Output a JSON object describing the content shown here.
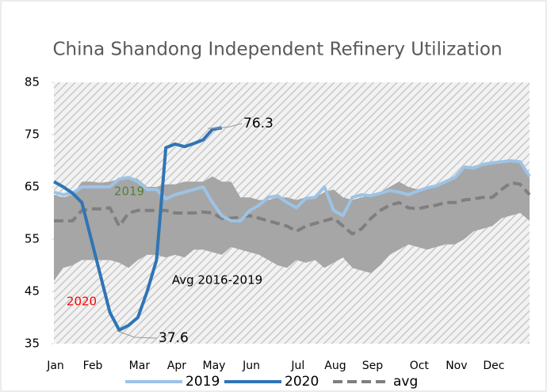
{
  "chart_data": {
    "type": "line",
    "title": "China Shandong Independent Refinery Utilization",
    "categories": [
      "Jan",
      null,
      null,
      null,
      "Feb",
      null,
      null,
      null,
      null,
      "Mar",
      null,
      null,
      null,
      "Apr",
      null,
      null,
      null,
      "May",
      null,
      null,
      null,
      "Jun",
      null,
      null,
      null,
      null,
      "Jul",
      null,
      null,
      null,
      "Aug",
      null,
      null,
      null,
      "Sep",
      null,
      null,
      null,
      null,
      "Oct",
      null,
      null,
      null,
      "Nov",
      null,
      null,
      null,
      "Dec",
      null,
      null,
      null,
      null
    ],
    "ylim": [
      35,
      85
    ],
    "yticks": [
      35,
      45,
      55,
      65,
      75,
      85
    ],
    "band": {
      "color": "#a6a6a6",
      "upper": [
        63.5,
        63,
        63.5,
        66,
        66,
        65.8,
        66,
        66.5,
        67,
        66.5,
        65,
        65,
        65.5,
        65.5,
        66,
        66,
        66,
        67,
        66,
        66,
        63,
        63,
        62.5,
        62.5,
        63,
        63,
        62.5,
        63,
        63,
        64,
        64.5,
        63,
        62.5,
        63,
        63.5,
        64,
        65,
        66,
        65,
        64.5,
        65,
        65.5,
        66,
        67,
        68.5,
        69,
        69.5,
        69.5,
        70,
        70,
        69.5,
        67
      ],
      "lower": [
        47,
        49.5,
        50,
        51,
        51,
        51,
        51,
        50.5,
        49.5,
        51,
        52,
        52,
        51.5,
        52,
        51.5,
        53,
        53,
        52.5,
        52,
        53.5,
        53,
        52.5,
        52,
        51,
        50,
        49.5,
        51,
        50.5,
        51,
        49.5,
        50.5,
        51.5,
        49.5,
        49,
        48.5,
        50,
        52,
        53,
        54,
        53.5,
        53,
        53.5,
        54,
        54,
        55,
        56.5,
        57,
        57.5,
        59,
        59.5,
        60,
        58.5
      ]
    },
    "series": [
      {
        "name": "2019",
        "color": "#9dc3e6",
        "width": 4,
        "dash": false,
        "values": [
          64,
          63.5,
          63.8,
          65,
          65,
          65,
          65,
          66.5,
          66.8,
          66,
          64.5,
          64.5,
          62.7,
          63.5,
          64,
          64.5,
          65,
          62,
          59.5,
          58.5,
          58.5,
          60.5,
          61.5,
          63,
          63.3,
          62,
          61,
          62.8,
          63,
          65,
          60.5,
          59.5,
          63,
          63.5,
          63.3,
          63.8,
          64.3,
          64,
          63.5,
          64.2,
          64.8,
          65.2,
          66,
          66.8,
          68.8,
          68.6,
          69.3,
          69.6,
          69.8,
          70,
          69.8,
          67
        ]
      },
      {
        "name": "2020",
        "color": "#2e75b6",
        "width": 4,
        "dash": false,
        "values": [
          66,
          65,
          63.8,
          62,
          55,
          48,
          41,
          37.6,
          38.5,
          40,
          45,
          51,
          72.5,
          73.2,
          72.7,
          73.3,
          74,
          76,
          76.3,
          null,
          null,
          null,
          null,
          null,
          null,
          null,
          null,
          null,
          null,
          null,
          null,
          null,
          null,
          null,
          null,
          null,
          null,
          null,
          null,
          null,
          null,
          null,
          null,
          null,
          null,
          null,
          null,
          null,
          null,
          null,
          null,
          null
        ]
      },
      {
        "name": "avg",
        "color": "#7f7f7f",
        "width": 4,
        "dash": true,
        "values": [
          58.5,
          58.5,
          58.5,
          60.5,
          60.8,
          60.8,
          61,
          57.5,
          60,
          60.5,
          60.5,
          60.5,
          60.5,
          60,
          60,
          60,
          60.2,
          60,
          59,
          59,
          59.2,
          59.5,
          59,
          58.5,
          58,
          57.5,
          56.5,
          57.5,
          58,
          58.5,
          59,
          57.5,
          56,
          57,
          59,
          60.5,
          61.5,
          62,
          61,
          60.8,
          61.2,
          61.5,
          62,
          62,
          62.5,
          62.7,
          63,
          63,
          64.5,
          65.8,
          65.5,
          63.5
        ]
      }
    ],
    "annotations": [
      {
        "text": "76.3",
        "color": "#000000"
      },
      {
        "text": "37.6",
        "color": "#000000"
      },
      {
        "text": "2019",
        "color": "#548235"
      },
      {
        "text": "2020",
        "color": "#ff0000"
      },
      {
        "text": "Avg 2016-2019",
        "color": "#000000"
      }
    ]
  }
}
